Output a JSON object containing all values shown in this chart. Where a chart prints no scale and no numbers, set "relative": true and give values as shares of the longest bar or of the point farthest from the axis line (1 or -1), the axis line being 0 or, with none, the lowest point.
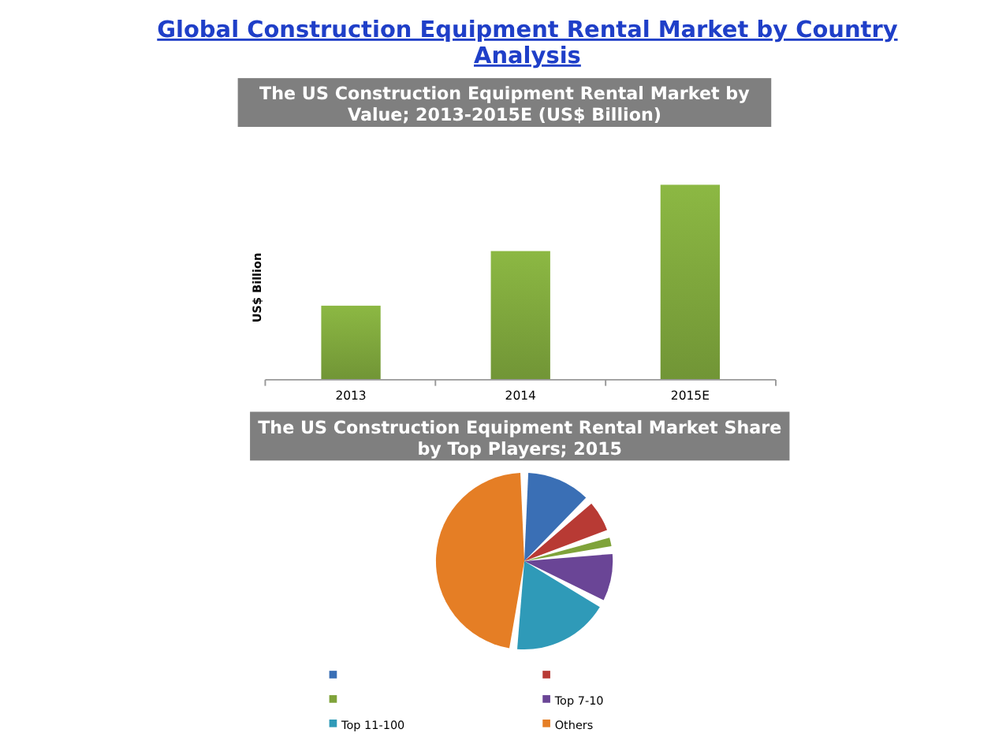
{
  "chart_data": [
    {
      "type": "other",
      "title": "Global Construction Equipment Rental Market by Country Analysis"
    },
    {
      "type": "bar",
      "title": "The US Construction Equipment Rental Market by Value; 2013-2015E (US$ Billion)",
      "ylabel": "US$ Billion",
      "categories": [
        "2013",
        "2014",
        "2015E"
      ],
      "values": [
        0.38,
        0.66,
        1
      ],
      "color": "#8cb843",
      "relative": true,
      "grid": false,
      "legend": false
    },
    {
      "type": "pie",
      "title": "The US Construction Equipment Rental Market Share by Top Players; 2015",
      "categories": [
        null,
        null,
        null,
        "Top 7-10",
        "Top 11-100",
        "Others"
      ],
      "values": [
        13,
        7,
        3,
        10,
        19,
        48
      ],
      "colors": [
        "#3a6fb5",
        "#b83a34",
        "#7fa33a",
        "#6a4596",
        "#2f9ab8",
        "#e57e25"
      ],
      "legend": "bottom"
    }
  ]
}
